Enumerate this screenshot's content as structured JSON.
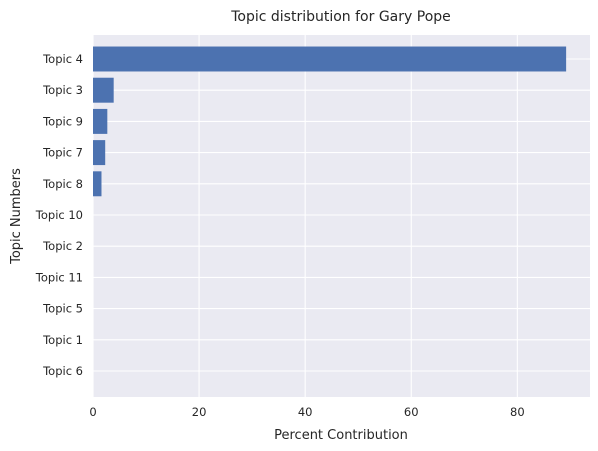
{
  "chart_data": {
    "type": "bar",
    "orientation": "horizontal",
    "title": "Topic distribution for Gary Pope",
    "xlabel": "Percent Contribution",
    "ylabel": "Topic Numbers",
    "categories": [
      "Topic 4",
      "Topic 3",
      "Topic 9",
      "Topic 7",
      "Topic 8",
      "Topic 10",
      "Topic 2",
      "Topic 11",
      "Topic 5",
      "Topic 1",
      "Topic 6"
    ],
    "values": [
      89.2,
      3.9,
      2.7,
      2.3,
      1.6,
      0.0,
      0.0,
      0.0,
      0.0,
      0.0,
      0.0
    ],
    "xlim": [
      0,
      93.7
    ],
    "xticks": [
      0,
      20,
      40,
      60,
      80
    ],
    "grid": true,
    "legend": "none",
    "colors": {
      "bar": "#4c72b0",
      "plot_background": "#eaeaf2",
      "grid": "#ffffff",
      "text": "#262626"
    }
  }
}
